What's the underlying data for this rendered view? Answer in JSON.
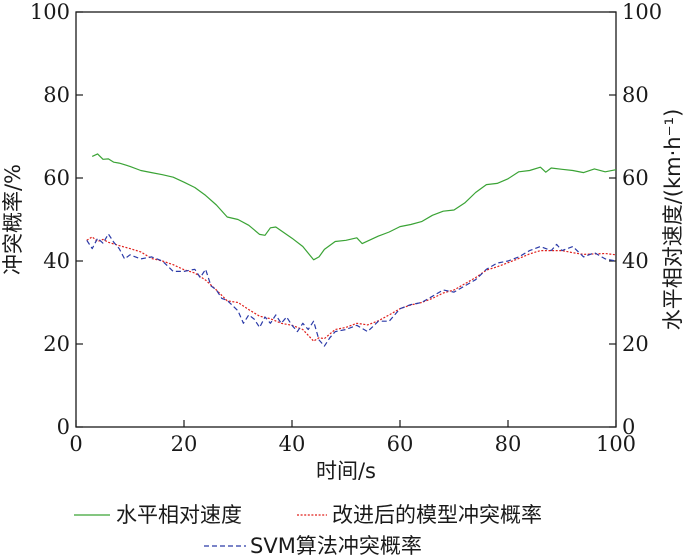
{
  "chart_data": {
    "type": "line",
    "xlabel": "时间/s",
    "ylabel_left": "冲突概率/%",
    "ylabel_right": "水平相对速度/(km·h⁻¹)",
    "xlim": [
      0,
      100
    ],
    "ylim_left": [
      0,
      100
    ],
    "ylim_right": [
      0,
      100
    ],
    "x_ticks": [
      "0",
      "20",
      "40",
      "60",
      "80",
      "100"
    ],
    "y_ticks_left": [
      "0",
      "20",
      "40",
      "60",
      "80",
      "100"
    ],
    "y_ticks_right": [
      "0",
      "20",
      "40",
      "60",
      "80",
      "100"
    ],
    "grid": false,
    "legend_position": "bottom",
    "series": [
      {
        "name": "水平相对速度",
        "color": "#3aa335",
        "style": "solid",
        "x": [
          3,
          4,
          5,
          6,
          7,
          8,
          10,
          12,
          14,
          16,
          18,
          20,
          22,
          24,
          26,
          28,
          30,
          32,
          34,
          35,
          36,
          37,
          38,
          40,
          42,
          44,
          45,
          46,
          48,
          50,
          52,
          53,
          54,
          56,
          58,
          60,
          62,
          64,
          66,
          68,
          70,
          72,
          74,
          76,
          78,
          80,
          82,
          84,
          86,
          87,
          88,
          90,
          92,
          94,
          96,
          98,
          100
        ],
        "values": [
          65.2,
          65.8,
          64.5,
          64.6,
          63.8,
          63.6,
          62.8,
          61.8,
          61.3,
          60.8,
          60.2,
          59.0,
          57.7,
          55.8,
          53.5,
          50.6,
          50.0,
          48.6,
          46.4,
          46.2,
          48.0,
          48.2,
          47.3,
          45.5,
          43.5,
          40.3,
          41.0,
          42.8,
          44.7,
          45.0,
          45.6,
          44.2,
          44.8,
          46.0,
          47.0,
          48.3,
          48.8,
          49.5,
          51.0,
          52.0,
          52.3,
          54.0,
          56.5,
          58.4,
          58.7,
          59.8,
          61.5,
          61.8,
          62.6,
          61.4,
          62.4,
          62.1,
          61.8,
          61.3,
          62.2,
          61.5,
          62.0
        ]
      },
      {
        "name": "改进后的模型冲突概率",
        "color": "#e0201c",
        "style": "dotted",
        "x": [
          2,
          3,
          4,
          5,
          6,
          8,
          10,
          12,
          14,
          16,
          18,
          20,
          22,
          24,
          26,
          28,
          30,
          32,
          34,
          36,
          38,
          40,
          42,
          44,
          45,
          46,
          48,
          50,
          52,
          54,
          56,
          58,
          60,
          62,
          64,
          66,
          68,
          70,
          72,
          74,
          76,
          78,
          80,
          82,
          84,
          86,
          88,
          90,
          92,
          94,
          96,
          98,
          100
        ],
        "values": [
          45.0,
          45.8,
          44.7,
          45.2,
          44.5,
          43.7,
          43.0,
          42.2,
          40.6,
          40.0,
          39.1,
          37.9,
          37.1,
          35.4,
          33.0,
          30.4,
          30.0,
          28.3,
          26.7,
          26.1,
          25.0,
          24.5,
          23.5,
          20.7,
          21.5,
          21.3,
          23.5,
          24.0,
          25.0,
          24.6,
          25.6,
          27.0,
          28.5,
          29.4,
          30.0,
          31.0,
          32.3,
          33.0,
          34.5,
          36.0,
          37.8,
          38.6,
          39.6,
          40.6,
          41.7,
          42.5,
          42.5,
          42.5,
          42.0,
          41.6,
          41.7,
          41.8,
          41.5
        ]
      },
      {
        "name": "SVM算法冲突概率",
        "color": "#2b3aa8",
        "style": "dashed",
        "x": [
          2,
          3,
          4,
          5,
          6,
          7,
          8,
          9,
          10,
          12,
          14,
          16,
          18,
          20,
          22,
          23,
          24,
          25,
          26,
          27,
          28,
          30,
          31,
          32,
          33,
          34,
          35,
          36,
          37,
          38,
          39,
          40,
          41,
          42,
          43,
          44,
          45,
          46,
          47,
          48,
          50,
          52,
          54,
          56,
          58,
          60,
          62,
          64,
          66,
          68,
          70,
          72,
          74,
          76,
          78,
          80,
          82,
          84,
          86,
          88,
          89,
          90,
          92,
          94,
          96,
          98,
          100
        ],
        "values": [
          45.0,
          43.0,
          45.5,
          44.3,
          46.5,
          44.5,
          43.0,
          40.5,
          41.5,
          40.5,
          41.0,
          40.0,
          37.5,
          37.5,
          38.0,
          36.0,
          38.0,
          34.0,
          33.0,
          31.0,
          30.5,
          28.0,
          25.0,
          27.0,
          26.0,
          24.0,
          26.5,
          25.0,
          27.0,
          25.0,
          26.5,
          24.5,
          23.0,
          25.0,
          23.5,
          25.5,
          21.0,
          19.5,
          21.5,
          23.0,
          23.5,
          24.5,
          23.0,
          25.5,
          25.5,
          28.5,
          29.5,
          30.0,
          31.5,
          33.0,
          32.5,
          34.0,
          35.5,
          38.0,
          39.5,
          40.0,
          41.0,
          42.5,
          43.5,
          42.5,
          44.0,
          42.5,
          43.5,
          41.0,
          42.0,
          40.5,
          40.0
        ]
      }
    ]
  }
}
